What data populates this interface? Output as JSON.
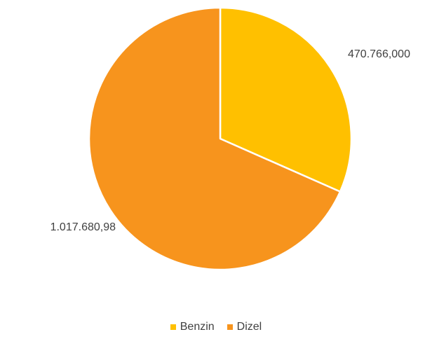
{
  "chart_data": {
    "type": "pie",
    "categories": [
      "Benzin",
      "Dizel"
    ],
    "values": [
      470766.0,
      1017680.98
    ],
    "data_labels": [
      "470.766,000",
      "1.017.680,98"
    ],
    "colors": [
      "#FFC000",
      "#F7941D"
    ],
    "start_angle_deg": 0,
    "direction": "clockwise",
    "legend": "bottom"
  }
}
